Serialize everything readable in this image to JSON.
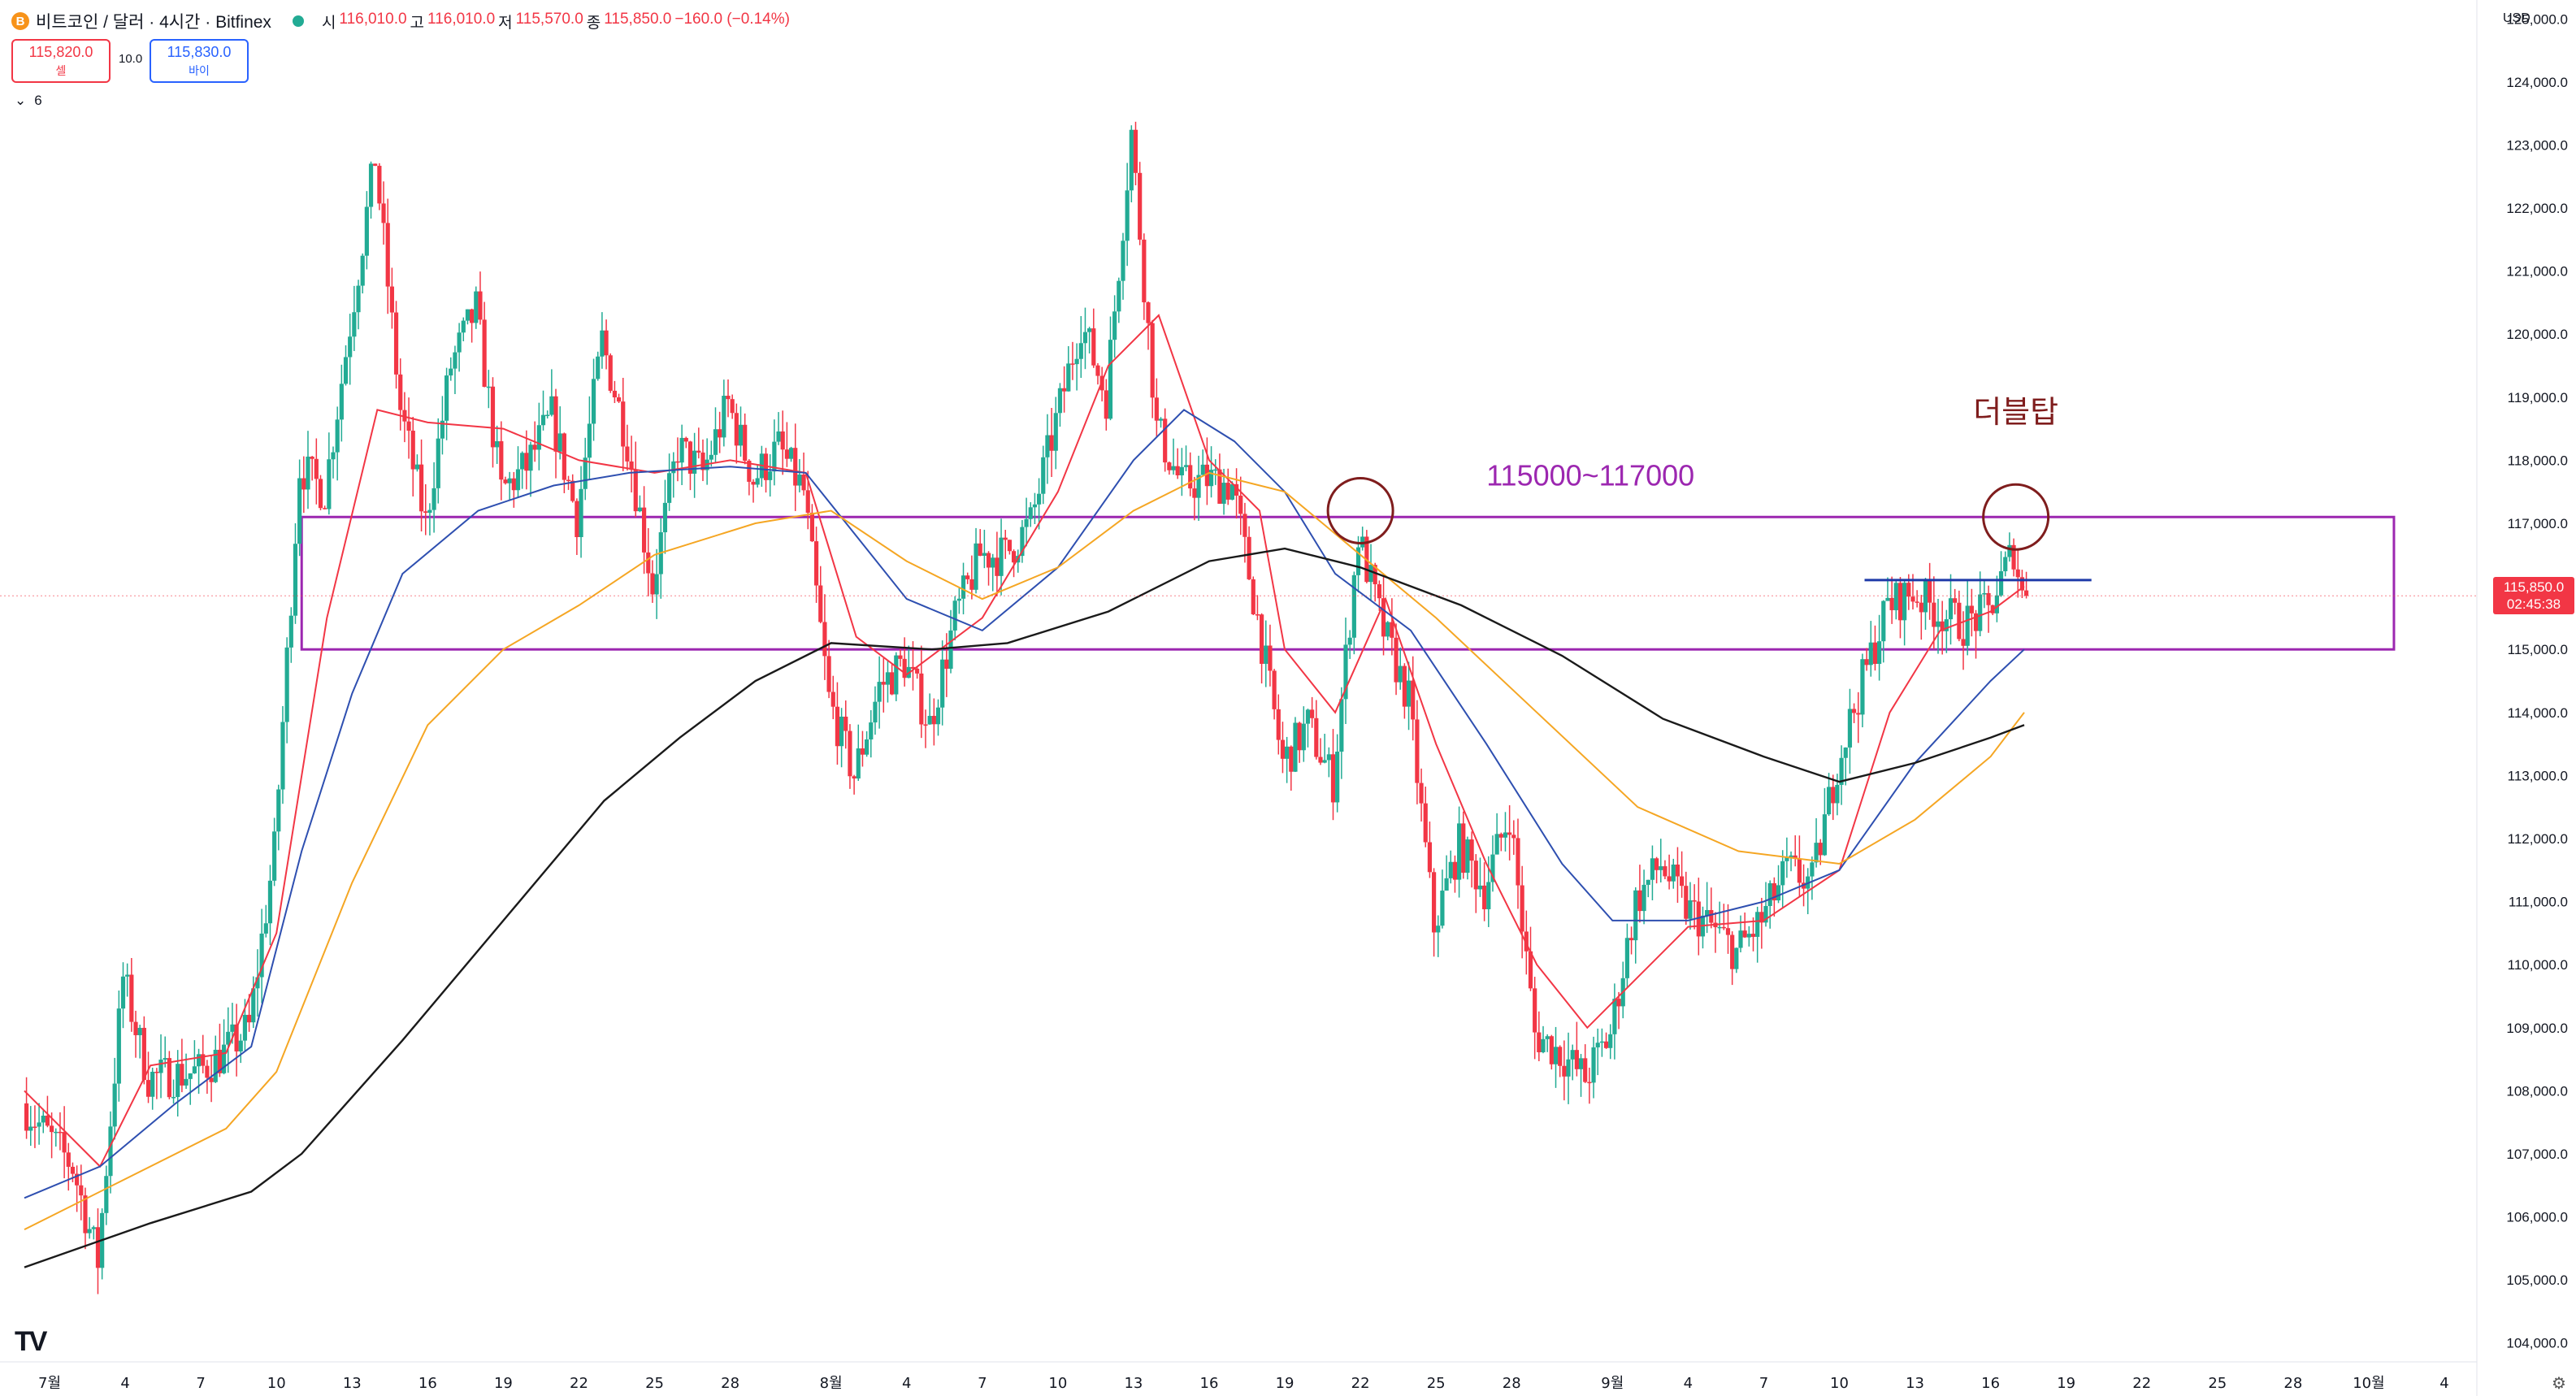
{
  "header": {
    "symbol": "비트코인 / 달러 · 4시간 · Bitfinex",
    "coin_icon": "B",
    "open_label": "시",
    "open": "116,010.0",
    "high_label": "고",
    "high": "116,010.0",
    "low_label": "저",
    "low": "115,570.0",
    "close_label": "종",
    "close": "115,850.0",
    "change": "−160.0 (−0.14%)"
  },
  "trade": {
    "sell_price": "115,820.0",
    "sell_label": "셀",
    "spread": "10.0",
    "buy_price": "115,830.0",
    "buy_label": "바이",
    "indicators_toggle": "6"
  },
  "price_scale": {
    "currency": "USD",
    "ticks": [
      "125,000.0",
      "124,000.0",
      "123,000.0",
      "122,000.0",
      "121,000.0",
      "120,000.0",
      "119,000.0",
      "118,000.0",
      "117,000.0",
      "116,000.0",
      "115,000.0",
      "114,000.0",
      "113,000.0",
      "112,000.0",
      "111,000.0",
      "110,000.0",
      "109,000.0",
      "108,000.0",
      "107,000.0",
      "106,000.0",
      "105,000.0",
      "104,000.0"
    ],
    "current_price": "115,850.0",
    "countdown": "02:45:38"
  },
  "time_scale": {
    "ticks": [
      "7월",
      "4",
      "7",
      "10",
      "13",
      "16",
      "19",
      "22",
      "25",
      "28",
      "8월",
      "4",
      "7",
      "10",
      "13",
      "16",
      "19",
      "22",
      "25",
      "28",
      "9월",
      "4",
      "7",
      "10",
      "13",
      "16",
      "19",
      "22",
      "25",
      "28",
      "10월",
      "4"
    ]
  },
  "annotations": {
    "zone_label": "115000~117000",
    "pattern_label": "더블탑"
  },
  "logo": "TV",
  "colors": {
    "up": "#22ab94",
    "down": "#f23645",
    "ema_fast": "#f23645",
    "ema_mid": "#2e4fb0",
    "ema_slow": "#f5a623",
    "ema_long": "#1a1a1a",
    "zone": "#9c27b0",
    "circle": "#7f1d1d",
    "neckline": "#1e3aa8"
  },
  "chart_data": {
    "type": "candlestick",
    "title": "",
    "ylim": [
      103700,
      125300
    ],
    "x_range": [
      "2025-06-30",
      "2025-10-04"
    ],
    "candle_interval_hours": 4,
    "anchors_date_price": [
      [
        "2025-06-30",
        107800
      ],
      [
        "2025-07-02",
        106800
      ],
      [
        "2025-07-03",
        105300
      ],
      [
        "2025-07-04",
        109800
      ],
      [
        "2025-07-05",
        108200
      ],
      [
        "2025-07-07",
        108300
      ],
      [
        "2025-07-08",
        108600
      ],
      [
        "2025-07-09",
        109000
      ],
      [
        "2025-07-10",
        111800
      ],
      [
        "2025-07-11",
        117900
      ],
      [
        "2025-07-12",
        117500
      ],
      [
        "2025-07-14",
        122800
      ],
      [
        "2025-07-15",
        118800
      ],
      [
        "2025-07-16",
        117000
      ],
      [
        "2025-07-17",
        119500
      ],
      [
        "2025-07-18",
        120400
      ],
      [
        "2025-07-19",
        117500
      ],
      [
        "2025-07-20",
        117900
      ],
      [
        "2025-07-21",
        118700
      ],
      [
        "2025-07-22",
        117100
      ],
      [
        "2025-07-23",
        119900
      ],
      [
        "2025-07-24",
        118300
      ],
      [
        "2025-07-25",
        116000
      ],
      [
        "2025-07-26",
        118200
      ],
      [
        "2025-07-27",
        117800
      ],
      [
        "2025-07-28",
        118900
      ],
      [
        "2025-07-29",
        117700
      ],
      [
        "2025-07-30",
        118200
      ],
      [
        "2025-07-31",
        117500
      ],
      [
        "2025-08-01",
        114200
      ],
      [
        "2025-08-02",
        113000
      ],
      [
        "2025-08-03",
        114400
      ],
      [
        "2025-08-04",
        114800
      ],
      [
        "2025-08-05",
        113800
      ],
      [
        "2025-08-06",
        115500
      ],
      [
        "2025-08-07",
        116500
      ],
      [
        "2025-08-08",
        116500
      ],
      [
        "2025-08-09",
        117000
      ],
      [
        "2025-08-10",
        118600
      ],
      [
        "2025-08-11",
        120200
      ],
      [
        "2025-08-12",
        119000
      ],
      [
        "2025-08-13",
        123200
      ],
      [
        "2025-08-14",
        118500
      ],
      [
        "2025-08-15",
        117600
      ],
      [
        "2025-08-16",
        117700
      ],
      [
        "2025-08-17",
        117600
      ],
      [
        "2025-08-18",
        115500
      ],
      [
        "2025-08-19",
        113200
      ],
      [
        "2025-08-20",
        113800
      ],
      [
        "2025-08-21",
        112900
      ],
      [
        "2025-08-22",
        116800
      ],
      [
        "2025-08-23",
        115300
      ],
      [
        "2025-08-24",
        114200
      ],
      [
        "2025-08-25",
        110600
      ],
      [
        "2025-08-26",
        111900
      ],
      [
        "2025-08-27",
        111200
      ],
      [
        "2025-08-28",
        112400
      ],
      [
        "2025-08-29",
        108900
      ],
      [
        "2025-08-30",
        108600
      ],
      [
        "2025-08-31",
        108200
      ],
      [
        "2025-09-01",
        108900
      ],
      [
        "2025-09-02",
        111000
      ],
      [
        "2025-09-03",
        111600
      ],
      [
        "2025-09-04",
        110900
      ],
      [
        "2025-09-05",
        110600
      ],
      [
        "2025-09-06",
        110200
      ],
      [
        "2025-09-07",
        110700
      ],
      [
        "2025-09-08",
        111500
      ],
      [
        "2025-09-09",
        111300
      ],
      [
        "2025-09-10",
        113200
      ],
      [
        "2025-09-11",
        114500
      ],
      [
        "2025-09-12",
        115700
      ],
      [
        "2025-09-13",
        115900
      ],
      [
        "2025-09-14",
        115600
      ],
      [
        "2025-09-15",
        115400
      ],
      [
        "2025-09-16",
        115600
      ],
      [
        "2025-09-17",
        116600
      ],
      [
        "2025-09-17T08:00",
        115850
      ]
    ],
    "series": [
      {
        "role": "moving-average-fast",
        "color": "#f23645",
        "points": [
          [
            "2025-06-30",
            108000
          ],
          [
            "2025-07-03",
            106800
          ],
          [
            "2025-07-05",
            108400
          ],
          [
            "2025-07-08",
            108600
          ],
          [
            "2025-07-10",
            110500
          ],
          [
            "2025-07-12",
            115500
          ],
          [
            "2025-07-14",
            118800
          ],
          [
            "2025-07-16",
            118600
          ],
          [
            "2025-07-19",
            118500
          ],
          [
            "2025-07-22",
            118000
          ],
          [
            "2025-07-25",
            117800
          ],
          [
            "2025-07-28",
            118000
          ],
          [
            "2025-07-31",
            117800
          ],
          [
            "2025-08-02",
            115200
          ],
          [
            "2025-08-04",
            114600
          ],
          [
            "2025-08-07",
            115500
          ],
          [
            "2025-08-10",
            117500
          ],
          [
            "2025-08-12",
            119500
          ],
          [
            "2025-08-14",
            120300
          ],
          [
            "2025-08-16",
            118000
          ],
          [
            "2025-08-18",
            117200
          ],
          [
            "2025-08-19",
            115000
          ],
          [
            "2025-08-21",
            114000
          ],
          [
            "2025-08-23",
            115800
          ],
          [
            "2025-08-25",
            113500
          ],
          [
            "2025-08-27",
            111600
          ],
          [
            "2025-08-29",
            110000
          ],
          [
            "2025-08-31",
            109000
          ],
          [
            "2025-09-02",
            109800
          ],
          [
            "2025-09-04",
            110600
          ],
          [
            "2025-09-07",
            110700
          ],
          [
            "2025-09-10",
            111500
          ],
          [
            "2025-09-12",
            114000
          ],
          [
            "2025-09-14",
            115300
          ],
          [
            "2025-09-16",
            115600
          ],
          [
            "2025-09-17T08:00",
            116000
          ]
        ]
      },
      {
        "role": "moving-average-mid",
        "color": "#2e4fb0",
        "points": [
          [
            "2025-06-30",
            106300
          ],
          [
            "2025-07-03",
            106800
          ],
          [
            "2025-07-06",
            107800
          ],
          [
            "2025-07-09",
            108700
          ],
          [
            "2025-07-11",
            111800
          ],
          [
            "2025-07-13",
            114300
          ],
          [
            "2025-07-15",
            116200
          ],
          [
            "2025-07-18",
            117200
          ],
          [
            "2025-07-21",
            117600
          ],
          [
            "2025-07-24",
            117800
          ],
          [
            "2025-07-28",
            117900
          ],
          [
            "2025-07-31",
            117800
          ],
          [
            "2025-08-02",
            116800
          ],
          [
            "2025-08-04",
            115800
          ],
          [
            "2025-08-07",
            115300
          ],
          [
            "2025-08-10",
            116300
          ],
          [
            "2025-08-13",
            118000
          ],
          [
            "2025-08-15",
            118800
          ],
          [
            "2025-08-17",
            118300
          ],
          [
            "2025-08-19",
            117500
          ],
          [
            "2025-08-21",
            116200
          ],
          [
            "2025-08-24",
            115300
          ],
          [
            "2025-08-27",
            113500
          ],
          [
            "2025-08-30",
            111600
          ],
          [
            "2025-09-01",
            110700
          ],
          [
            "2025-09-04",
            110700
          ],
          [
            "2025-09-07",
            111000
          ],
          [
            "2025-09-10",
            111500
          ],
          [
            "2025-09-13",
            113200
          ],
          [
            "2025-09-16",
            114500
          ],
          [
            "2025-09-17T08:00",
            115000
          ]
        ]
      },
      {
        "role": "moving-average-slow",
        "color": "#f5a623",
        "points": [
          [
            "2025-06-30",
            105800
          ],
          [
            "2025-07-04",
            106600
          ],
          [
            "2025-07-08",
            107400
          ],
          [
            "2025-07-10",
            108300
          ],
          [
            "2025-07-13",
            111300
          ],
          [
            "2025-07-16",
            113800
          ],
          [
            "2025-07-19",
            115000
          ],
          [
            "2025-07-22",
            115700
          ],
          [
            "2025-07-25",
            116500
          ],
          [
            "2025-07-29",
            117000
          ],
          [
            "2025-08-01",
            117200
          ],
          [
            "2025-08-04",
            116400
          ],
          [
            "2025-08-07",
            115800
          ],
          [
            "2025-08-10",
            116300
          ],
          [
            "2025-08-13",
            117200
          ],
          [
            "2025-08-16",
            117800
          ],
          [
            "2025-08-19",
            117500
          ],
          [
            "2025-08-22",
            116500
          ],
          [
            "2025-08-25",
            115500
          ],
          [
            "2025-08-29",
            114000
          ],
          [
            "2025-09-02",
            112500
          ],
          [
            "2025-09-06",
            111800
          ],
          [
            "2025-09-10",
            111600
          ],
          [
            "2025-09-13",
            112300
          ],
          [
            "2025-09-16",
            113300
          ],
          [
            "2025-09-17T08:00",
            114000
          ]
        ]
      },
      {
        "role": "moving-average-long",
        "color": "#1a1a1a",
        "points": [
          [
            "2025-06-30",
            105200
          ],
          [
            "2025-07-05",
            105900
          ],
          [
            "2025-07-09",
            106400
          ],
          [
            "2025-07-11",
            107000
          ],
          [
            "2025-07-15",
            108800
          ],
          [
            "2025-07-19",
            110700
          ],
          [
            "2025-07-23",
            112600
          ],
          [
            "2025-07-26",
            113600
          ],
          [
            "2025-07-29",
            114500
          ],
          [
            "2025-08-01",
            115100
          ],
          [
            "2025-08-05",
            115000
          ],
          [
            "2025-08-08",
            115100
          ],
          [
            "2025-08-12",
            115600
          ],
          [
            "2025-08-16",
            116400
          ],
          [
            "2025-08-19",
            116600
          ],
          [
            "2025-08-22",
            116300
          ],
          [
            "2025-08-26",
            115700
          ],
          [
            "2025-08-30",
            114900
          ],
          [
            "2025-09-03",
            113900
          ],
          [
            "2025-09-07",
            113300
          ],
          [
            "2025-09-10",
            112900
          ],
          [
            "2025-09-13",
            113200
          ],
          [
            "2025-09-16",
            113600
          ],
          [
            "2025-09-17T08:00",
            113800
          ]
        ]
      }
    ],
    "zone": {
      "low": 115000,
      "high": 117100,
      "from": "2025-07-11",
      "to": "2025-10-02"
    },
    "neckline": {
      "price": 116100,
      "from": "2025-09-11",
      "to": "2025-09-20"
    },
    "markers": [
      {
        "kind": "circle",
        "date": "2025-08-22",
        "price": 117200
      },
      {
        "kind": "circle",
        "date": "2025-09-17",
        "price": 117100
      }
    ]
  }
}
